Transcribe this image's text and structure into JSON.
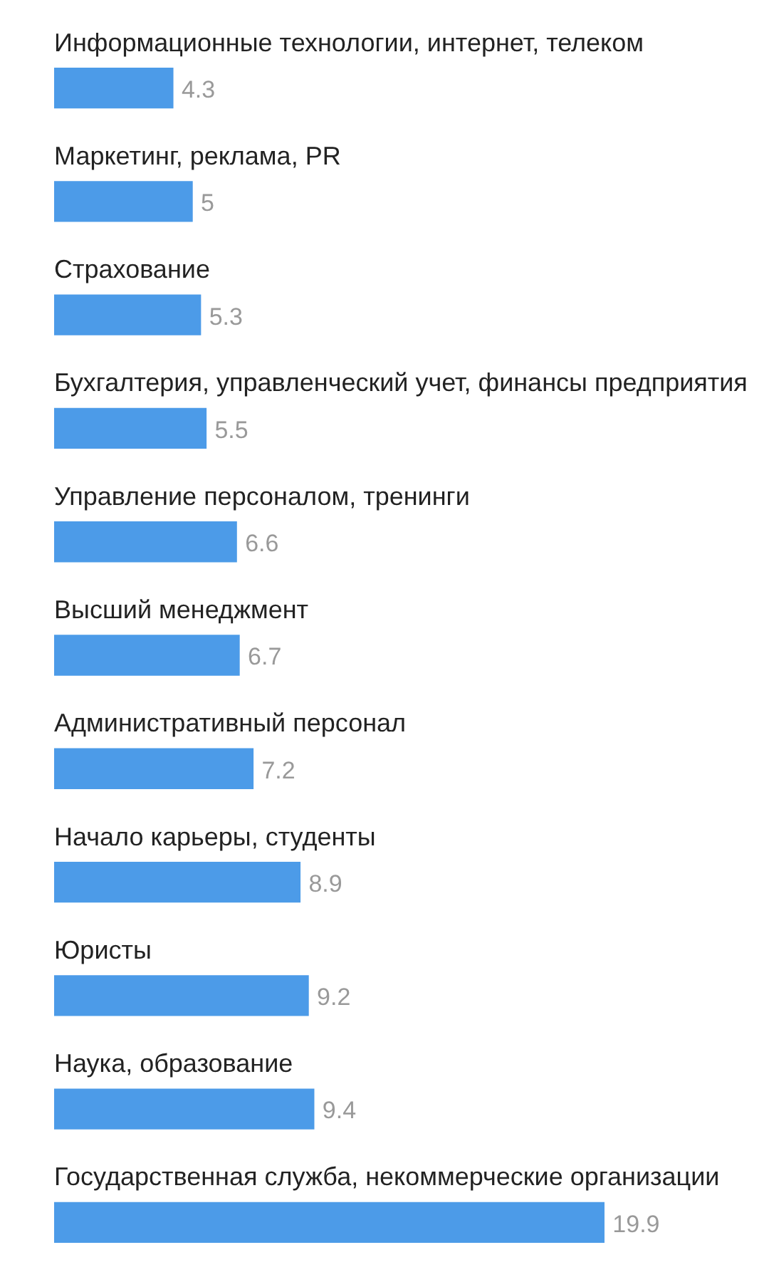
{
  "chart_data": {
    "type": "bar",
    "orientation": "horizontal",
    "categories": [
      "Информационные технологии, интернет, телеком",
      "Маркетинг, реклама, PR",
      "Страхование",
      "Бухгалтерия, управленческий учет, финансы предприятия",
      "Управление персоналом, тренинги",
      "Высший менеджмент",
      "Административный персонал",
      "Начало карьеры, студенты",
      "Юристы",
      "Наука, образование",
      "Государственная служба, некоммерческие организации"
    ],
    "values": [
      4.3,
      5,
      5.3,
      5.5,
      6.6,
      6.7,
      7.2,
      8.9,
      9.2,
      9.4,
      19.9
    ],
    "color": "#4c9be8",
    "data_labels": true,
    "tick_labels": "y"
  }
}
